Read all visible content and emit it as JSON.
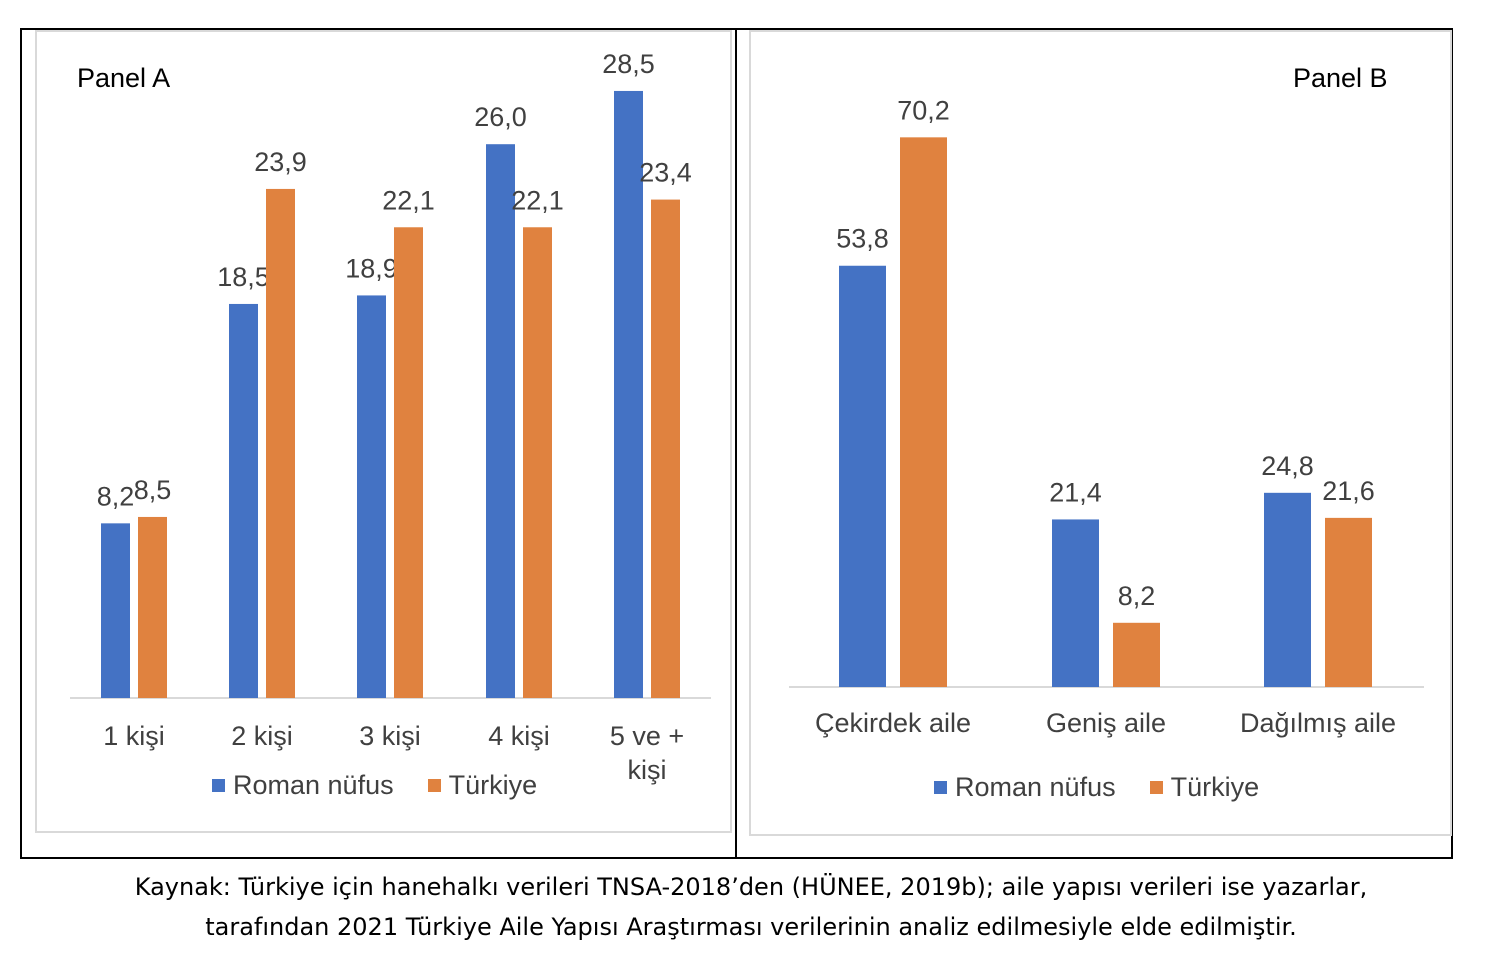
{
  "caption": {
    "line1": "Kaynak: Türkiye için hanehalkı verileri TNSA-2018’den (HÜNEE, 2019b); aile yapısı verileri ise yazarlar,",
    "line2": "tarafından 2021 Türkiye Aile Yapısı Araştırması verilerinin analiz edilmesiyle elde edilmiştir."
  },
  "colors": {
    "roman": "#4472c4",
    "turkiye": "#e0823f",
    "axis": "#d9d9d9"
  },
  "chart_data": [
    {
      "type": "bar",
      "title": "Panel A",
      "categories": [
        "1 kişi",
        "2 kişi",
        "3 kişi",
        "4 kişi",
        "5 ve + kişi"
      ],
      "series": [
        {
          "name": "Roman nüfus",
          "values": [
            8.2,
            18.5,
            18.9,
            26.0,
            28.5
          ],
          "labels": [
            "8,2",
            "18,5",
            "18,9",
            "26,0",
            "28,5"
          ]
        },
        {
          "name": "Türkiye",
          "values": [
            8.5,
            23.9,
            22.1,
            22.1,
            23.4
          ],
          "labels": [
            "8,5",
            "23,9",
            "22,1",
            "22,1",
            "23,4"
          ]
        }
      ],
      "ylim": [
        0,
        30
      ],
      "grid": false,
      "legend": "bottom"
    },
    {
      "type": "bar",
      "title": "Panel B",
      "categories": [
        "Çekirdek aile",
        "Geniş aile",
        "Dağılmış aile"
      ],
      "series": [
        {
          "name": "Roman nüfus",
          "values": [
            53.8,
            21.4,
            24.8
          ],
          "labels": [
            "53,8",
            "21,4",
            "24,8"
          ]
        },
        {
          "name": "Türkiye",
          "values": [
            70.2,
            8.2,
            21.6
          ],
          "labels": [
            "70,2",
            "8,2",
            "21,6"
          ]
        }
      ],
      "ylim": [
        0,
        75
      ],
      "grid": false,
      "legend": "bottom"
    }
  ]
}
